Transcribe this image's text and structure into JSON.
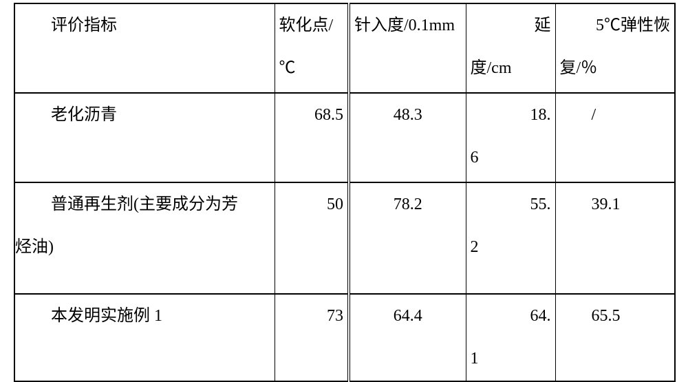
{
  "table": {
    "cols": [
      378,
      108,
      170,
      130,
      174
    ],
    "header": {
      "c1": "评价指标",
      "c2": "软化点/℃",
      "c3": "针入度/0.1mm",
      "c4_line1": "延",
      "c4_line2": "度/cm",
      "c5_line1": "5℃弹性恢",
      "c5_line2": "复/％"
    },
    "rows": [
      {
        "label_line1_indent": "老化沥青",
        "label_line2": "",
        "v1": "68.5",
        "v2": "48.3",
        "v3_line1": "18.",
        "v3_line2": "6",
        "v4": "/"
      },
      {
        "label_line1_indent": "普通再生剂(主要成分为芳",
        "label_line2": "烃油)",
        "v1": "50",
        "v2": "78.2",
        "v3_line1": "55.",
        "v3_line2": "2",
        "v4": "39.1"
      },
      {
        "label_line1_indent": "本发明实施例 1",
        "label_line2": "",
        "v1": "73",
        "v2": "64.4",
        "v3_line1": "64.",
        "v3_line2": "1",
        "v4": "65.5"
      }
    ],
    "style": {
      "font_family": "SimSun",
      "font_size_pt": 18,
      "border_color": "#000000",
      "bg": "#ffffff",
      "double_line_between_cols": [
        2,
        3
      ]
    }
  }
}
